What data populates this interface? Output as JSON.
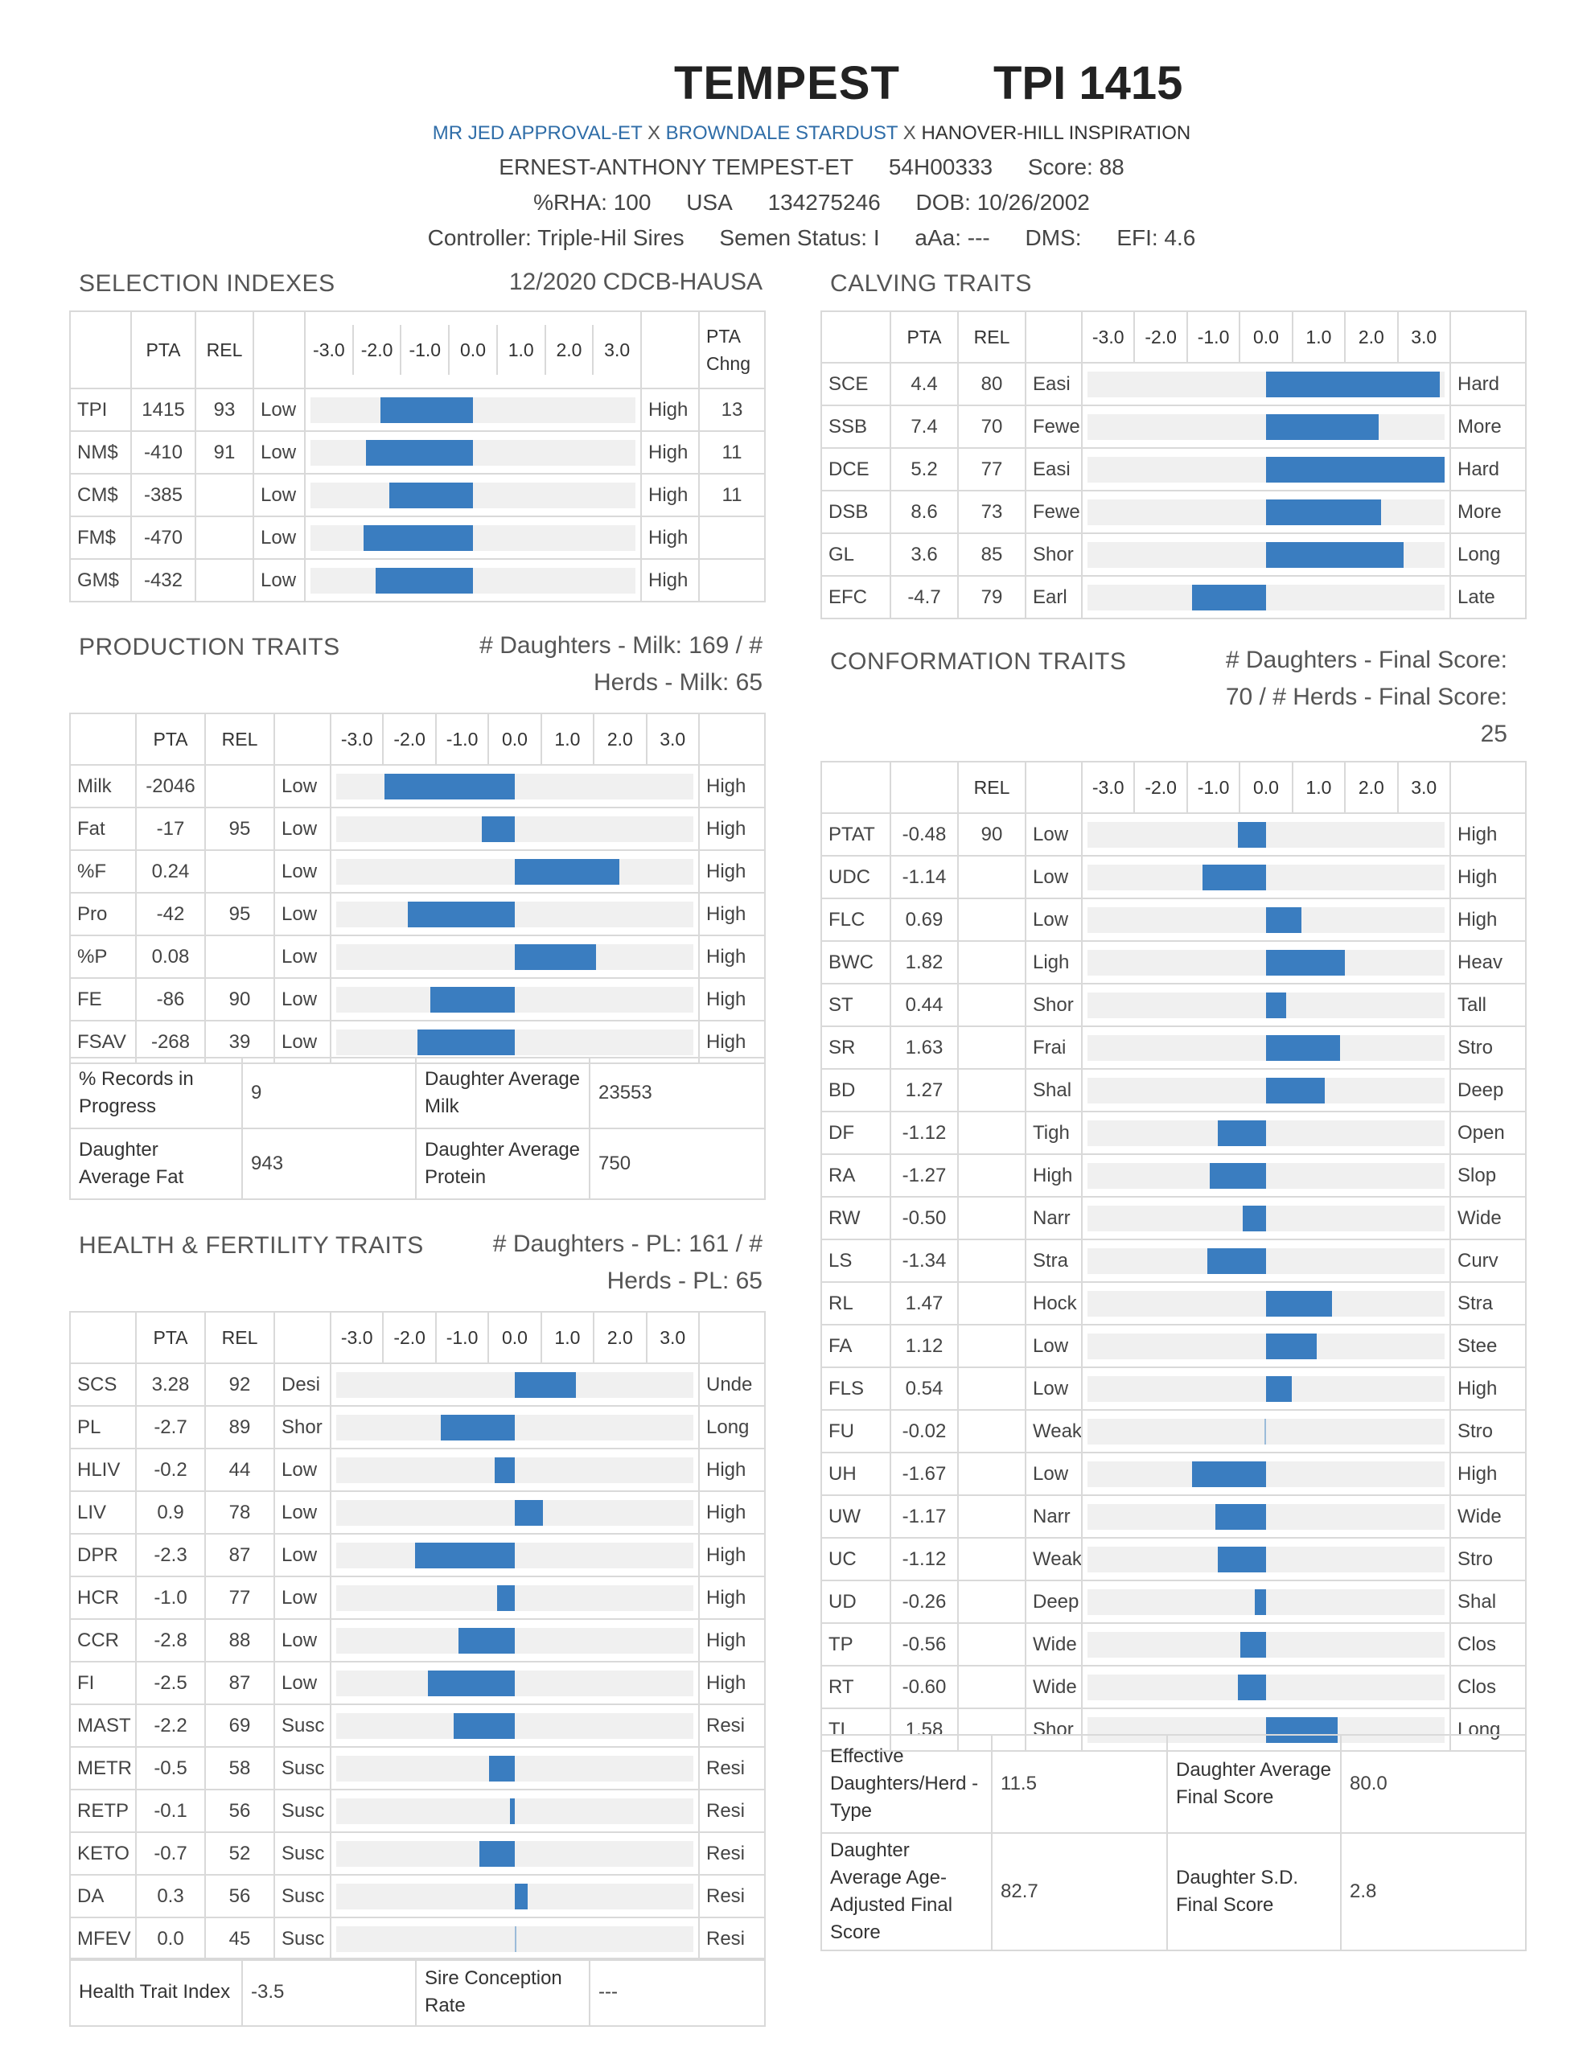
{
  "header": {
    "name": "TEMPEST",
    "tpi": "TPI 1415",
    "sire": "MR JED APPROVAL-ET",
    "x1": " X ",
    "mgs": "BROWNDALE STARDUST",
    "x2": " X ",
    "mggs": "HANOVER-HILL INSPIRATION",
    "full_name": "ERNEST-ANTHONY TEMPEST-ET",
    "code": "54H00333",
    "score": "Score: 88",
    "rha": "%RHA: 100",
    "country": "USA",
    "reg": "134275246",
    "dob": "DOB: 10/26/2002",
    "controller": "Controller: Triple-Hil Sires",
    "semen": "Semen Status: I",
    "aaa": "aAa: ---",
    "dms": "DMS:",
    "efi": "EFI: 4.6"
  },
  "axis_ticks": [
    "-3.0",
    "-2.0",
    "-1.0",
    "0.0",
    "1.0",
    "2.0",
    "3.0"
  ],
  "selection": {
    "title": "SELECTION INDEXES",
    "source": "12/2020 CDCB-HAUSA",
    "headers": {
      "pta": "PTA",
      "rel": "REL",
      "chng": "PTA Chng"
    },
    "rows": [
      {
        "name": "TPI",
        "pta": "1415",
        "rel": "93",
        "low": "Low",
        "high": "High",
        "chng": "13",
        "bar": -2.0
      },
      {
        "name": "NM$",
        "pta": "-410",
        "rel": "91",
        "low": "Low",
        "high": "High",
        "chng": "11",
        "bar": -2.3
      },
      {
        "name": "CM$",
        "pta": "-385",
        "rel": "",
        "low": "Low",
        "high": "High",
        "chng": "11",
        "bar": -1.8
      },
      {
        "name": "FM$",
        "pta": "-470",
        "rel": "",
        "low": "Low",
        "high": "High",
        "chng": "",
        "bar": -2.35
      },
      {
        "name": "GM$",
        "pta": "-432",
        "rel": "",
        "low": "Low",
        "high": "High",
        "chng": "",
        "bar": -2.1
      }
    ]
  },
  "calving": {
    "title": "CALVING TRAITS",
    "headers": {
      "pta": "PTA",
      "rel": "REL"
    },
    "rows": [
      {
        "name": "SCE",
        "pta": "4.4",
        "rel": "80",
        "low": "Easi",
        "high": "Hard",
        "bar": 3.4
      },
      {
        "name": "SSB",
        "pta": "7.4",
        "rel": "70",
        "low": "Fewe",
        "high": "More",
        "bar": 2.2
      },
      {
        "name": "DCE",
        "pta": "5.2",
        "rel": "77",
        "low": "Easi",
        "high": "Hard",
        "bar": 3.5
      },
      {
        "name": "DSB",
        "pta": "8.6",
        "rel": "73",
        "low": "Fewe",
        "high": "More",
        "bar": 2.25
      },
      {
        "name": "GL",
        "pta": "3.6",
        "rel": "85",
        "low": "Shor",
        "high": "Long",
        "bar": 2.7
      },
      {
        "name": "EFC",
        "pta": "-4.7",
        "rel": "79",
        "low": "Earl",
        "high": "Late",
        "bar": -1.45
      }
    ]
  },
  "production": {
    "title": "PRODUCTION TRAITS",
    "daughters": "# Daughters - Milk: 169 / #",
    "herds": "Herds - Milk: 65",
    "headers": {
      "pta": "PTA",
      "rel": "REL"
    },
    "rows": [
      {
        "name": "Milk",
        "pta": "-2046",
        "rel": "",
        "low": "Low",
        "high": "High",
        "bar": -2.55
      },
      {
        "name": "Fat",
        "pta": "-17",
        "rel": "95",
        "low": "Low",
        "high": "High",
        "bar": -0.65
      },
      {
        "name": "%F",
        "pta": "0.24",
        "rel": "",
        "low": "Low",
        "high": "High",
        "bar": 2.05
      },
      {
        "name": "Pro",
        "pta": "-42",
        "rel": "95",
        "low": "Low",
        "high": "High",
        "bar": -2.1
      },
      {
        "name": "%P",
        "pta": "0.08",
        "rel": "",
        "low": "Low",
        "high": "High",
        "bar": 1.6
      },
      {
        "name": "FE",
        "pta": "-86",
        "rel": "90",
        "low": "Low",
        "high": "High",
        "bar": -1.65
      },
      {
        "name": "FSAV",
        "pta": "-268",
        "rel": "39",
        "low": "Low",
        "high": "High",
        "bar": -1.9
      }
    ],
    "extra": [
      {
        "k1": "% Records in Progress",
        "v1": "9",
        "k2": "Daughter Average Milk",
        "v2": "23553"
      },
      {
        "k1": "Daughter Average Fat",
        "v1": "943",
        "k2": "Daughter Average Protein",
        "v2": "750"
      }
    ]
  },
  "health": {
    "title": "HEALTH & FERTILITY TRAITS",
    "daughters": "# Daughters - PL: 161 / #",
    "herds": "Herds - PL: 65",
    "headers": {
      "pta": "PTA",
      "rel": "REL"
    },
    "rows": [
      {
        "name": "SCS",
        "pta": "3.28",
        "rel": "92",
        "low": "Desi",
        "high": "Unde",
        "bar": 1.2
      },
      {
        "name": "PL",
        "pta": "-2.7",
        "rel": "89",
        "low": "Shor",
        "high": "Long",
        "bar": -1.45
      },
      {
        "name": "HLIV",
        "pta": "-0.2",
        "rel": "44",
        "low": "Low",
        "high": "High",
        "bar": -0.4
      },
      {
        "name": "LIV",
        "pta": "0.9",
        "rel": "78",
        "low": "Low",
        "high": "High",
        "bar": 0.55
      },
      {
        "name": "DPR",
        "pta": "-2.3",
        "rel": "87",
        "low": "Low",
        "high": "High",
        "bar": -1.95
      },
      {
        "name": "HCR",
        "pta": "-1.0",
        "rel": "77",
        "low": "Low",
        "high": "High",
        "bar": -0.35
      },
      {
        "name": "CCR",
        "pta": "-2.8",
        "rel": "88",
        "low": "Low",
        "high": "High",
        "bar": -1.1
      },
      {
        "name": "FI",
        "pta": "-2.5",
        "rel": "87",
        "low": "Low",
        "high": "High",
        "bar": -1.7
      },
      {
        "name": "MAST",
        "pta": "-2.2",
        "rel": "69",
        "low": "Susc",
        "high": "Resi",
        "bar": -1.2
      },
      {
        "name": "METR",
        "pta": "-0.5",
        "rel": "58",
        "low": "Susc",
        "high": "Resi",
        "bar": -0.5
      },
      {
        "name": "RETP",
        "pta": "-0.1",
        "rel": "56",
        "low": "Susc",
        "high": "Resi",
        "bar": -0.1
      },
      {
        "name": "KETO",
        "pta": "-0.7",
        "rel": "52",
        "low": "Susc",
        "high": "Resi",
        "bar": -0.7
      },
      {
        "name": "DA",
        "pta": "0.3",
        "rel": "56",
        "low": "Susc",
        "high": "Resi",
        "bar": 0.25
      },
      {
        "name": "MFEV",
        "pta": "0.0",
        "rel": "45",
        "low": "Susc",
        "high": "Resi",
        "bar": 0.0
      }
    ],
    "extra": [
      {
        "k1": "Health Trait Index",
        "v1": "-3.5",
        "k2": "Sire Conception Rate",
        "v2": "---"
      }
    ]
  },
  "conformation": {
    "title": "CONFORMATION TRAITS",
    "daughters": "# Daughters - Final Score:",
    "herds": "70 / # Herds - Final Score:",
    "herds2": "25",
    "headers": {
      "rel": "REL"
    },
    "rows": [
      {
        "name": "PTAT",
        "pta": "-0.48",
        "rel": "90",
        "low": "Low",
        "high": "High",
        "bar": -0.55
      },
      {
        "name": "UDC",
        "pta": "-1.14",
        "rel": "",
        "low": "Low",
        "high": "High",
        "bar": -1.25
      },
      {
        "name": "FLC",
        "pta": "0.69",
        "rel": "",
        "low": "Low",
        "high": "High",
        "bar": 0.7
      },
      {
        "name": "BWC",
        "pta": "1.82",
        "rel": "",
        "low": "Ligh",
        "high": "Heav",
        "bar": 1.55
      },
      {
        "name": "ST",
        "pta": "0.44",
        "rel": "",
        "low": "Shor",
        "high": "Tall",
        "bar": 0.4
      },
      {
        "name": "SR",
        "pta": "1.63",
        "rel": "",
        "low": "Frai",
        "high": "Stro",
        "bar": 1.45
      },
      {
        "name": "BD",
        "pta": "1.27",
        "rel": "",
        "low": "Shal",
        "high": "Deep",
        "bar": 1.15
      },
      {
        "name": "DF",
        "pta": "-1.12",
        "rel": "",
        "low": "Tigh",
        "high": "Open",
        "bar": -0.95
      },
      {
        "name": "RA",
        "pta": "-1.27",
        "rel": "",
        "low": "High",
        "high": "Slop",
        "bar": -1.1
      },
      {
        "name": "RW",
        "pta": "-0.50",
        "rel": "",
        "low": "Narr",
        "high": "Wide",
        "bar": -0.45
      },
      {
        "name": "LS",
        "pta": "-1.34",
        "rel": "",
        "low": "Stra",
        "high": "Curv",
        "bar": -1.15
      },
      {
        "name": "RL",
        "pta": "1.47",
        "rel": "",
        "low": "Hock",
        "high": "Stra",
        "bar": 1.3
      },
      {
        "name": "FA",
        "pta": "1.12",
        "rel": "",
        "low": "Low",
        "high": "Stee",
        "bar": 1.0
      },
      {
        "name": "FLS",
        "pta": "0.54",
        "rel": "",
        "low": "Low",
        "high": "High",
        "bar": 0.5
      },
      {
        "name": "FU",
        "pta": "-0.02",
        "rel": "",
        "low": "Weak",
        "high": "Stro",
        "bar": -0.03
      },
      {
        "name": "UH",
        "pta": "-1.67",
        "rel": "",
        "low": "Low",
        "high": "High",
        "bar": -1.45
      },
      {
        "name": "UW",
        "pta": "-1.17",
        "rel": "",
        "low": "Narr",
        "high": "Wide",
        "bar": -1.0
      },
      {
        "name": "UC",
        "pta": "-1.12",
        "rel": "",
        "low": "Weak",
        "high": "Stro",
        "bar": -0.95
      },
      {
        "name": "UD",
        "pta": "-0.26",
        "rel": "",
        "low": "Deep",
        "high": "Shal",
        "bar": -0.22
      },
      {
        "name": "TP",
        "pta": "-0.56",
        "rel": "",
        "low": "Wide",
        "high": "Clos",
        "bar": -0.5
      },
      {
        "name": "RT",
        "pta": "-0.60",
        "rel": "",
        "low": "Wide",
        "high": "Clos",
        "bar": -0.55
      },
      {
        "name": "TL",
        "pta": "1.58",
        "rel": "",
        "low": "Shor",
        "high": "Long",
        "bar": 1.4
      }
    ],
    "extra": [
      {
        "k1": "Effective Daughters/Herd - Type",
        "v1": "11.5",
        "k2": "Daughter Average Final Score",
        "v2": "80.0"
      },
      {
        "k1": "Daughter Average Age-Adjusted Final Score",
        "v1": "82.7",
        "k2": "Daughter S.D. Final Score",
        "v2": "2.8"
      }
    ]
  }
}
